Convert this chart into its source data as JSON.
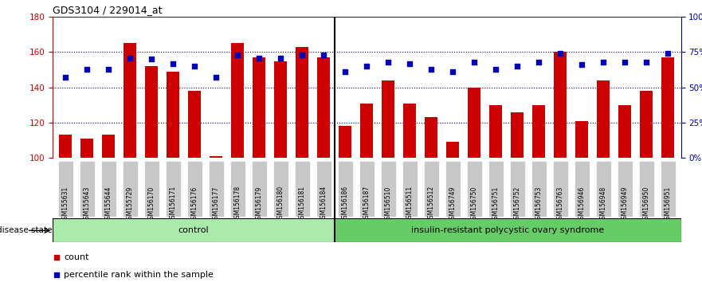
{
  "title": "GDS3104 / 229014_at",
  "samples": [
    "GSM155631",
    "GSM155643",
    "GSM155644",
    "GSM155729",
    "GSM156170",
    "GSM156171",
    "GSM156176",
    "GSM156177",
    "GSM156178",
    "GSM156179",
    "GSM156180",
    "GSM156181",
    "GSM156184",
    "GSM156186",
    "GSM156187",
    "GSM156510",
    "GSM156511",
    "GSM156512",
    "GSM156749",
    "GSM156750",
    "GSM156751",
    "GSM156752",
    "GSM156753",
    "GSM156763",
    "GSM156946",
    "GSM156948",
    "GSM156949",
    "GSM156950",
    "GSM156951"
  ],
  "bar_values": [
    113,
    111,
    113,
    165,
    152,
    149,
    138,
    101,
    165,
    157,
    155,
    163,
    157,
    118,
    131,
    144,
    131,
    123,
    109,
    140,
    130,
    126,
    130,
    160,
    121,
    144,
    130,
    138,
    157
  ],
  "percentile_values": [
    57,
    63,
    63,
    71,
    70,
    67,
    65,
    57,
    73,
    71,
    71,
    73,
    73,
    61,
    65,
    68,
    67,
    63,
    61,
    68,
    63,
    65,
    68,
    74,
    66,
    68,
    68,
    68,
    74
  ],
  "control_count": 13,
  "disease_count": 16,
  "ylim_left": [
    100,
    180
  ],
  "ylim_right": [
    0,
    100
  ],
  "yticks_left": [
    100,
    120,
    140,
    160,
    180
  ],
  "yticks_right": [
    0,
    25,
    50,
    75,
    100
  ],
  "ytick_labels_right": [
    "0%",
    "25%",
    "50%",
    "75%",
    "100%"
  ],
  "bar_color": "#cc0000",
  "dot_color": "#0000bb",
  "control_label": "control",
  "disease_label": "insulin-resistant polycystic ovary syndrome",
  "control_bg": "#aaeaaa",
  "disease_bg": "#66cc66",
  "legend_count": "count",
  "legend_percentile": "percentile rank within the sample",
  "disease_state_label": "disease state",
  "grid_dotted_color": "navy",
  "tick_bg": "#c8c8c8"
}
